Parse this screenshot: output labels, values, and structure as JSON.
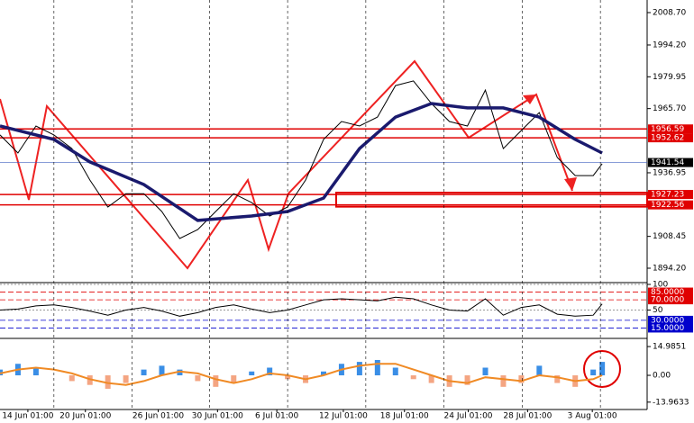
{
  "chart_data": [
    {
      "type": "line",
      "x": [
        0,
        1,
        2,
        3,
        4,
        5,
        6,
        7,
        8,
        9,
        10,
        11,
        12,
        13,
        14,
        15,
        16,
        17,
        18,
        19,
        20,
        21,
        22,
        23,
        24,
        25,
        26,
        27,
        28,
        29,
        30,
        31,
        32,
        33,
        33.5
      ],
      "xlim": [
        0,
        36
      ],
      "ylim": [
        1888.15,
        2014.35
      ],
      "yticks": [
        {
          "value": 2008.7,
          "label": "2008.70"
        },
        {
          "value": 1994.2,
          "label": "1994.20"
        },
        1979.95,
        {
          "value": 1965.7,
          "label": "1965.70"
        },
        1936.95,
        1908.45,
        {
          "value": 1894.2,
          "label": "1894.20"
        }
      ],
      "series": [
        {
          "color": "#000000",
          "values": [
            1953.9,
            1945.8,
            1957.9,
            1953.9,
            1947.8,
            1933.7,
            1921.6,
            1927.6,
            1927.6,
            1919.6,
            1907.5,
            1911.5,
            1919.6,
            1927.6,
            1923.6,
            1917.6,
            1921.6,
            1933.7,
            1951.9,
            1959.9,
            1957.9,
            1961.9,
            1976.0,
            1978.1,
            1968.0,
            1959.9,
            1957.9,
            1974.0,
            1947.8,
            1955.9,
            1963.9,
            1943.8,
            1935.7,
            1935.7,
            1941.0
          ]
        },
        {
          "color": "#1a1a6e",
          "x": [
            0,
            3,
            5,
            8,
            11,
            14,
            16,
            18,
            20,
            22,
            24,
            26,
            28,
            30,
            32,
            33.5
          ],
          "values": [
            1957.9,
            1951.9,
            1941.8,
            1931.7,
            1915.6,
            1917.6,
            1919.6,
            1925.6,
            1947.8,
            1961.9,
            1968.0,
            1966.0,
            1966.0,
            1961.9,
            1951.9,
            1945.8
          ]
        }
      ],
      "levels": [
        1956.59,
        1952.62,
        1927.23,
        1922.56
      ],
      "level_color": "#e00000",
      "last_price": 1941.54
    },
    {
      "type": "line",
      "x": [
        0,
        1,
        2,
        3,
        4,
        5,
        6,
        7,
        8,
        9,
        10,
        11,
        12,
        13,
        14,
        15,
        16,
        17,
        18,
        19,
        20,
        21,
        22,
        23,
        24,
        25,
        26,
        27,
        28,
        29,
        30,
        31,
        32,
        33,
        33.5
      ],
      "xlim": [
        0,
        36
      ],
      "ylim": [
        0,
        100
      ],
      "yticks": [
        100,
        50
      ],
      "levels": [
        {
          "value": 85,
          "label": "85.0000"
        },
        {
          "value": 70,
          "label": "70.0000"
        },
        {
          "value": 30,
          "label": "30.0000"
        },
        {
          "value": 15,
          "label": "15.0000"
        }
      ],
      "level_colors": [
        "#e00000",
        "#e00000",
        "#0000cc",
        "#0000cc"
      ],
      "series": [
        {
          "color": "#000000",
          "values": [
            50,
            52,
            58,
            60,
            55,
            48,
            40,
            50,
            55,
            48,
            38,
            45,
            55,
            60,
            52,
            45,
            50,
            60,
            70,
            72,
            70,
            68,
            75,
            72,
            60,
            50,
            48,
            72,
            40,
            55,
            60,
            42,
            38,
            40,
            62
          ]
        }
      ]
    },
    {
      "type": "bar",
      "x": [
        0,
        1,
        2,
        3,
        4,
        5,
        6,
        7,
        8,
        9,
        10,
        11,
        12,
        13,
        14,
        15,
        16,
        17,
        18,
        19,
        20,
        21,
        22,
        23,
        24,
        25,
        26,
        27,
        28,
        29,
        30,
        31,
        32,
        33,
        33.5
      ],
      "xlim": [
        0,
        36
      ],
      "ylim": [
        -17.8,
        18.3
      ],
      "yticks": [
        14.9851,
        {
          "value": 0,
          "label": "0.00"
        },
        -13.9633
      ],
      "values": [
        3,
        6,
        4,
        0,
        -3,
        -5,
        -7,
        -4,
        3,
        5,
        3,
        -3,
        -6,
        -4,
        2,
        4,
        -2,
        -4,
        2,
        6,
        7,
        8,
        4,
        -2,
        -4,
        -6,
        -5,
        4,
        -6,
        -4,
        5,
        -4,
        -6,
        3,
        7
      ],
      "colors": [
        "#3a8ee6",
        "#f4a582"
      ],
      "series": [
        {
          "color": "#f08a24",
          "values": [
            1,
            3,
            4,
            3,
            1,
            -2,
            -4,
            -5,
            -3,
            0,
            2,
            1,
            -2,
            -4,
            -2,
            1,
            0,
            -2,
            0,
            3,
            5,
            6,
            6,
            3,
            0,
            -3,
            -4,
            -1,
            -2,
            -3,
            0,
            -1,
            -3,
            -2,
            0
          ]
        }
      ],
      "xticks": [
        {
          "value": 1.55,
          "label": "14 Jun 01:00"
        },
        {
          "value": 4.75,
          "label": "20 Jun 01:00"
        },
        {
          "value": 8.8,
          "label": "26 Jun 01:00"
        },
        {
          "value": 12.1,
          "label": "30 Jun 01:00"
        },
        {
          "value": 15.4,
          "label": "6 Jul 01:00"
        },
        {
          "value": 19.1,
          "label": "12 Jul 01:00"
        },
        {
          "value": 22.5,
          "label": "18 Jul 01:00"
        },
        {
          "value": 26.05,
          "label": "24 Jul 01:00"
        },
        {
          "value": 29.35,
          "label": "28 Jul 01:00"
        },
        {
          "value": 32.95,
          "label": "3 Aug 01:00"
        }
      ],
      "xgrid": [
        3,
        7.35,
        11.65,
        16,
        20.35,
        24.7,
        29.05,
        33.4
      ]
    }
  ]
}
